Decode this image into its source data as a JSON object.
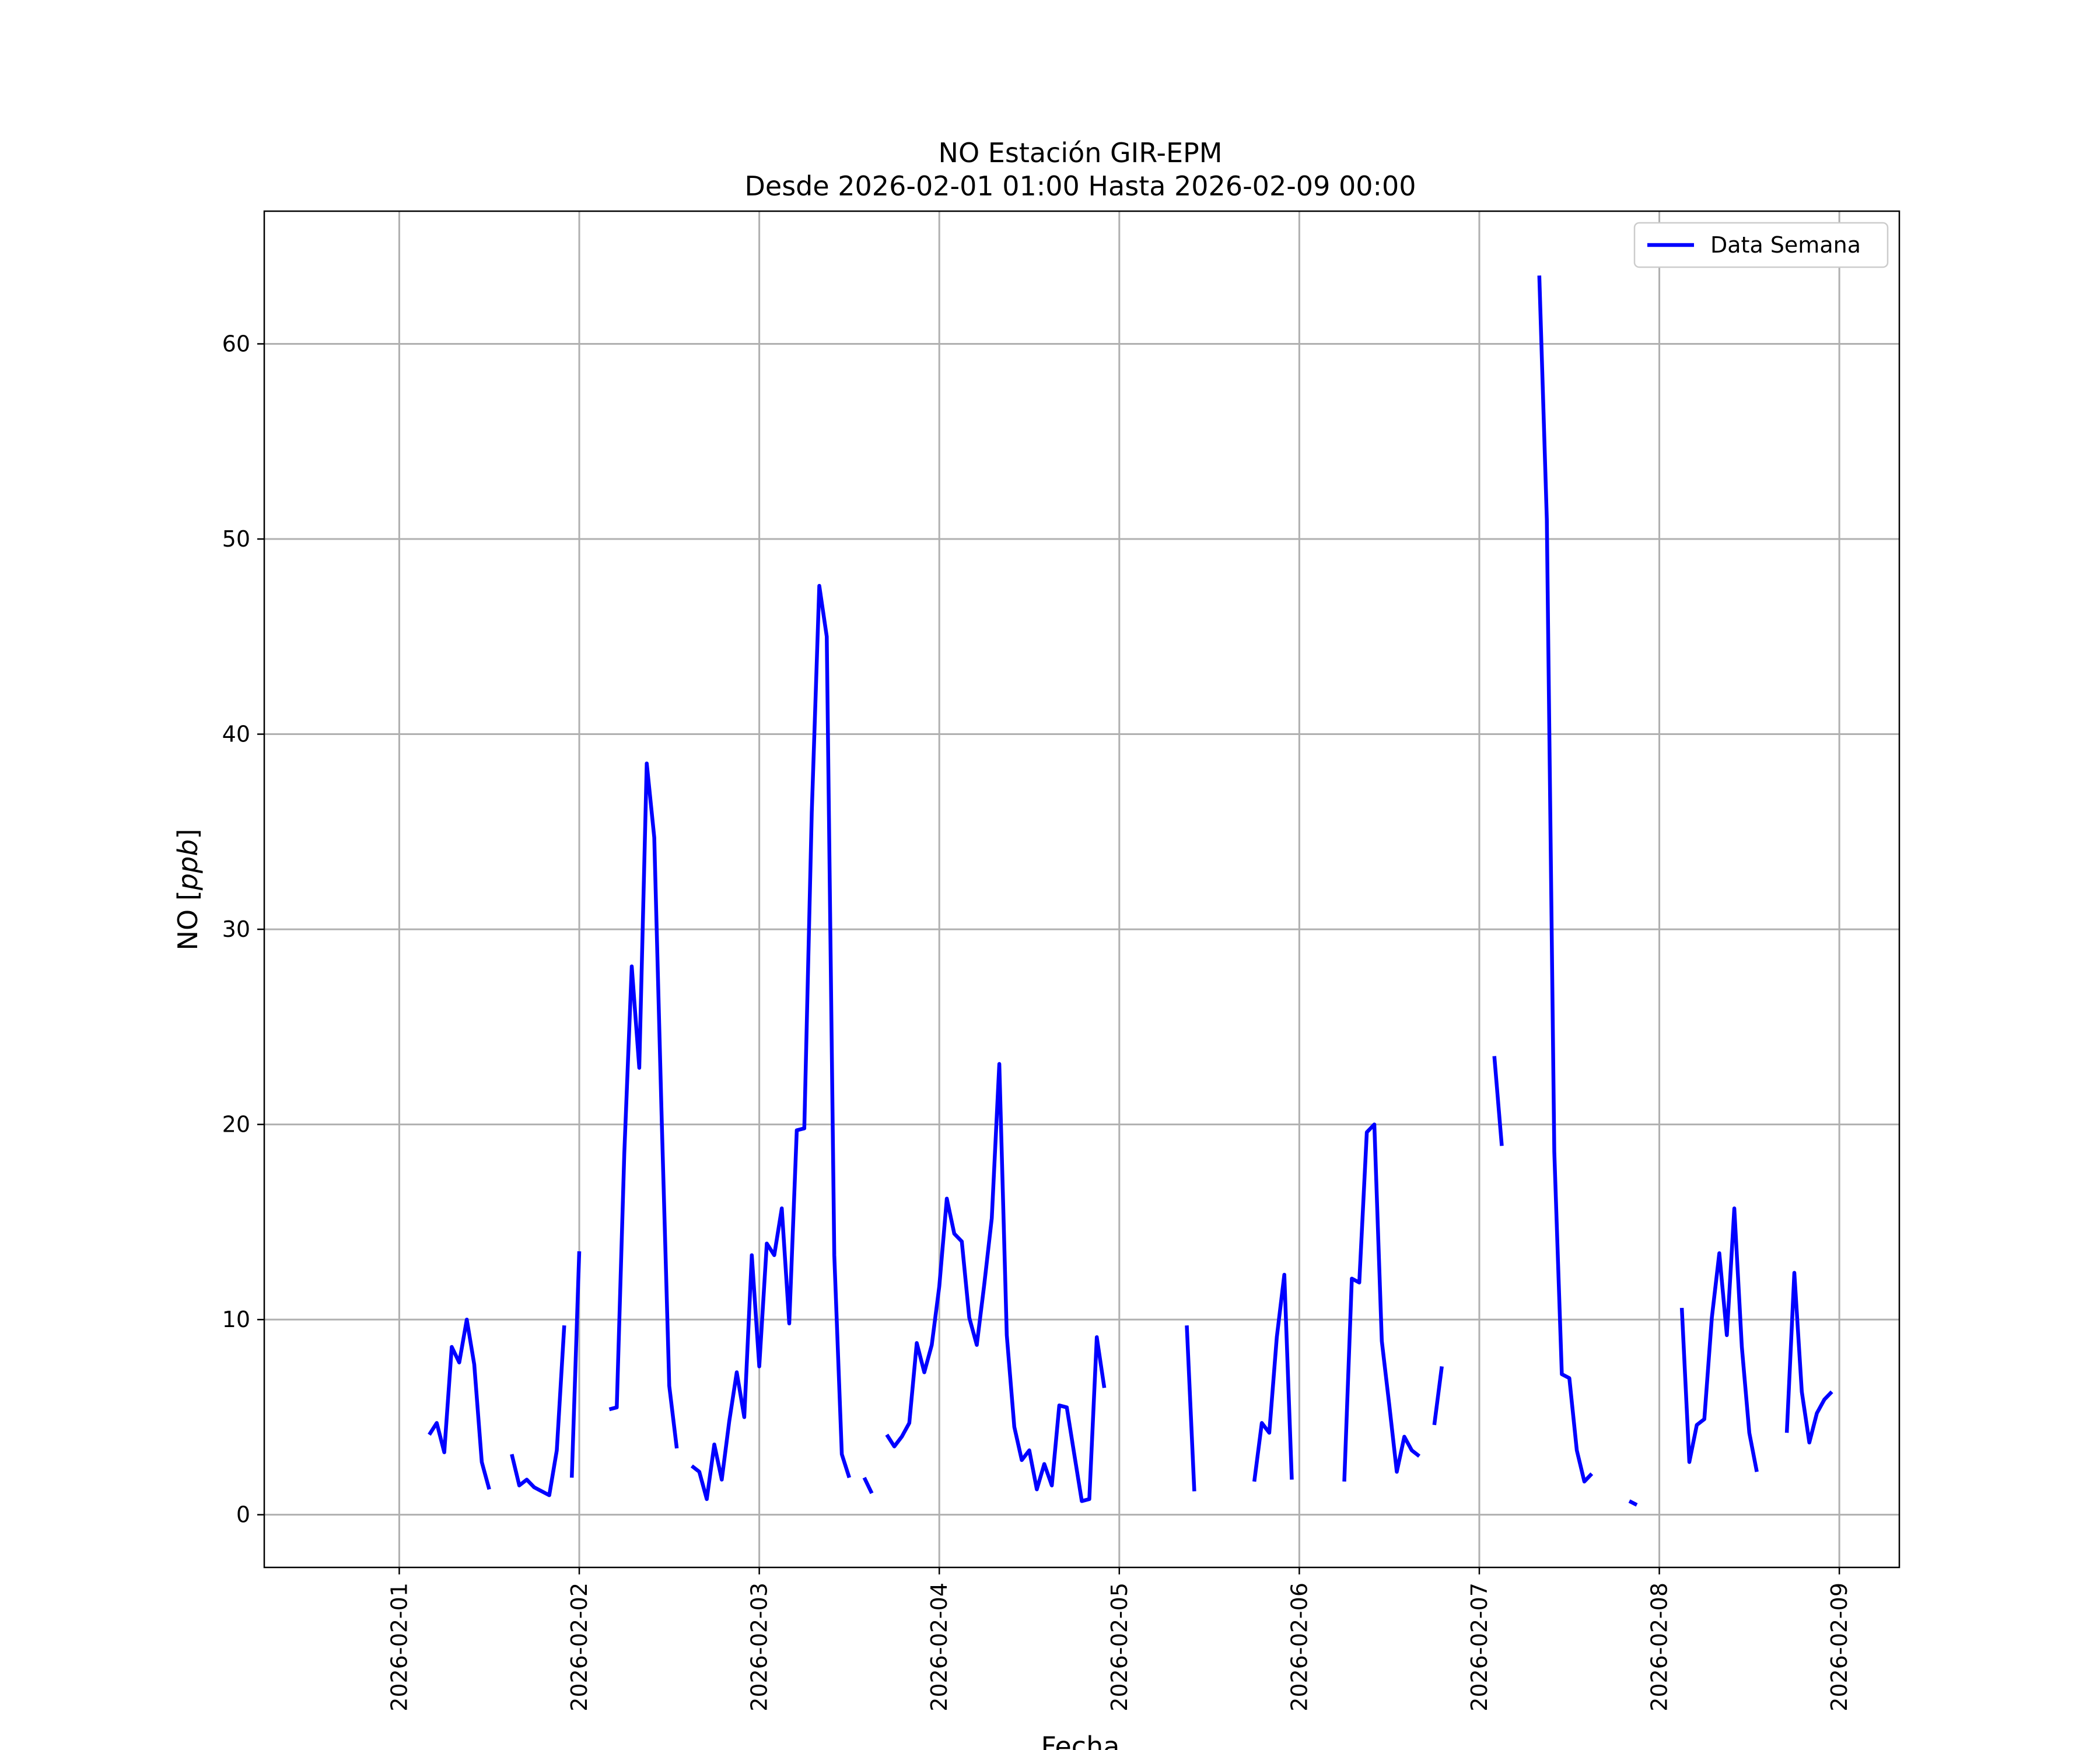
{
  "chart_data": {
    "type": "line",
    "title": "NO Estación GIR-EPM",
    "subtitle": "Desde 2026-02-01 01:00 Hasta 2026-02-09 00:00",
    "xlabel": "Fecha",
    "ylabel_text": "NO [",
    "ylabel_unit": "ppb",
    "ylabel_close": "]",
    "xlim": [
      "2026-01-31T06:00",
      "2026-02-09T08:00"
    ],
    "ylim": [
      -2.7,
      66.8
    ],
    "x_ticks": [
      "2026-02-01",
      "2026-02-02",
      "2026-02-03",
      "2026-02-04",
      "2026-02-05",
      "2026-02-06",
      "2026-02-07",
      "2026-02-08",
      "2026-02-09"
    ],
    "y_ticks": [
      0,
      10,
      20,
      30,
      40,
      50,
      60
    ],
    "y_tick_labels": [
      "0",
      "10",
      "20",
      "30",
      "40",
      "50",
      "60"
    ],
    "grid": true,
    "legend_placement": "top-right",
    "series": [
      {
        "name": "Data Semana",
        "color": "#0000ff",
        "segments": [
          [
            [
              "2026-02-01T04:00",
              4.1
            ],
            [
              "2026-02-01T05:00",
              4.7
            ],
            [
              "2026-02-01T06:00",
              3.2
            ],
            [
              "2026-02-01T07:00",
              8.6
            ],
            [
              "2026-02-01T08:00",
              7.8
            ],
            [
              "2026-02-01T09:00",
              10.0
            ],
            [
              "2026-02-01T10:00",
              7.7
            ],
            [
              "2026-02-01T11:00",
              2.7
            ],
            [
              "2026-02-01T12:00",
              1.3
            ]
          ],
          [
            [
              "2026-02-01T15:00",
              3.1
            ],
            [
              "2026-02-01T16:00",
              1.5
            ],
            [
              "2026-02-01T17:00",
              1.8
            ],
            [
              "2026-02-01T18:00",
              1.4
            ],
            [
              "2026-02-01T19:00",
              1.2
            ],
            [
              "2026-02-01T20:00",
              1.0
            ],
            [
              "2026-02-01T21:00",
              3.3
            ],
            [
              "2026-02-01T22:00",
              9.7
            ]
          ],
          [
            [
              "2026-02-01T23:00",
              1.9
            ],
            [
              "2026-02-02T00:00",
              13.5
            ]
          ],
          [
            [
              "2026-02-02T04:00",
              5.4
            ],
            [
              "2026-02-02T05:00",
              5.5
            ],
            [
              "2026-02-02T06:00",
              18.5
            ],
            [
              "2026-02-02T07:00",
              28.1
            ],
            [
              "2026-02-02T08:00",
              22.9
            ],
            [
              "2026-02-02T09:00",
              38.5
            ],
            [
              "2026-02-02T10:00",
              34.7
            ],
            [
              "2026-02-02T11:00",
              20.1
            ],
            [
              "2026-02-02T12:00",
              6.6
            ],
            [
              "2026-02-02T13:00",
              3.4
            ]
          ],
          [
            [
              "2026-02-02T15:00",
              2.5
            ],
            [
              "2026-02-02T16:00",
              2.2
            ],
            [
              "2026-02-02T17:00",
              0.8
            ],
            [
              "2026-02-02T18:00",
              3.6
            ],
            [
              "2026-02-02T19:00",
              1.8
            ],
            [
              "2026-02-02T20:00",
              4.8
            ],
            [
              "2026-02-02T21:00",
              7.3
            ],
            [
              "2026-02-02T22:00",
              5.0
            ],
            [
              "2026-02-02T23:00",
              13.3
            ],
            [
              "2026-02-03T00:00",
              7.6
            ],
            [
              "2026-02-03T01:00",
              13.9
            ],
            [
              "2026-02-03T02:00",
              13.3
            ],
            [
              "2026-02-03T03:00",
              15.7
            ],
            [
              "2026-02-03T04:00",
              9.8
            ],
            [
              "2026-02-03T05:00",
              19.7
            ],
            [
              "2026-02-03T06:00",
              19.8
            ],
            [
              "2026-02-03T07:00",
              36.0
            ],
            [
              "2026-02-03T08:00",
              47.6
            ],
            [
              "2026-02-03T09:00",
              45.0
            ],
            [
              "2026-02-03T10:00",
              13.3
            ],
            [
              "2026-02-03T11:00",
              3.1
            ],
            [
              "2026-02-03T12:00",
              1.9
            ]
          ],
          [
            [
              "2026-02-03T14:00",
              1.9
            ],
            [
              "2026-02-03T15:00",
              1.1
            ]
          ],
          [
            [
              "2026-02-03T17:00",
              4.1
            ],
            [
              "2026-02-03T18:00",
              3.5
            ],
            [
              "2026-02-03T19:00",
              4.0
            ],
            [
              "2026-02-03T20:00",
              4.7
            ],
            [
              "2026-02-03T21:00",
              8.8
            ],
            [
              "2026-02-03T22:00",
              7.3
            ],
            [
              "2026-02-03T23:00",
              8.7
            ],
            [
              "2026-02-04T00:00",
              11.7
            ],
            [
              "2026-02-04T01:00",
              16.2
            ],
            [
              "2026-02-04T02:00",
              14.4
            ],
            [
              "2026-02-04T03:00",
              14.0
            ],
            [
              "2026-02-04T04:00",
              10.1
            ],
            [
              "2026-02-04T05:00",
              8.7
            ],
            [
              "2026-02-04T06:00",
              11.8
            ],
            [
              "2026-02-04T07:00",
              15.2
            ],
            [
              "2026-02-04T08:00",
              23.1
            ],
            [
              "2026-02-04T09:00",
              9.2
            ],
            [
              "2026-02-04T10:00",
              4.5
            ],
            [
              "2026-02-04T11:00",
              2.8
            ],
            [
              "2026-02-04T12:00",
              3.3
            ],
            [
              "2026-02-04T13:00",
              1.3
            ],
            [
              "2026-02-04T14:00",
              2.6
            ],
            [
              "2026-02-04T15:00",
              1.5
            ],
            [
              "2026-02-04T16:00",
              5.6
            ],
            [
              "2026-02-04T17:00",
              5.5
            ],
            [
              "2026-02-04T18:00",
              3.1
            ],
            [
              "2026-02-04T19:00",
              0.7
            ],
            [
              "2026-02-04T20:00",
              0.8
            ],
            [
              "2026-02-04T21:00",
              9.1
            ],
            [
              "2026-02-04T22:00",
              6.5
            ]
          ],
          [
            [
              "2026-02-05T09:00",
              9.7
            ],
            [
              "2026-02-05T10:00",
              1.2
            ]
          ],
          [
            [
              "2026-02-05T18:00",
              1.7
            ],
            [
              "2026-02-05T19:00",
              4.7
            ],
            [
              "2026-02-05T20:00",
              4.2
            ],
            [
              "2026-02-05T21:00",
              9.1
            ],
            [
              "2026-02-05T22:00",
              12.3
            ],
            [
              "2026-02-05T23:00",
              1.8
            ]
          ],
          [
            [
              "2026-02-06T06:00",
              1.7
            ],
            [
              "2026-02-06T07:00",
              12.1
            ],
            [
              "2026-02-06T08:00",
              11.9
            ],
            [
              "2026-02-06T09:00",
              19.6
            ],
            [
              "2026-02-06T10:00",
              20.0
            ],
            [
              "2026-02-06T11:00",
              8.9
            ],
            [
              "2026-02-06T12:00",
              5.6
            ],
            [
              "2026-02-06T13:00",
              2.2
            ],
            [
              "2026-02-06T14:00",
              4.0
            ],
            [
              "2026-02-06T15:00",
              3.3
            ],
            [
              "2026-02-06T16:00",
              3.0
            ]
          ],
          [
            [
              "2026-02-06T18:00",
              4.6
            ],
            [
              "2026-02-06T19:00",
              7.6
            ]
          ],
          [
            [
              "2026-02-07T02:00",
              23.5
            ],
            [
              "2026-02-07T03:00",
              18.9
            ]
          ],
          [
            [
              "2026-02-07T08:00",
              63.5
            ],
            [
              "2026-02-07T09:00",
              51.0
            ],
            [
              "2026-02-07T10:00",
              18.6
            ],
            [
              "2026-02-07T11:00",
              7.2
            ],
            [
              "2026-02-07T12:00",
              7.0
            ],
            [
              "2026-02-07T13:00",
              3.3
            ],
            [
              "2026-02-07T14:00",
              1.7
            ],
            [
              "2026-02-07T15:00",
              2.1
            ]
          ],
          [
            [
              "2026-02-07T20:00",
              0.7
            ],
            [
              "2026-02-07T21:00",
              0.5
            ]
          ],
          [
            [
              "2026-02-08T03:00",
              10.6
            ],
            [
              "2026-02-08T04:00",
              2.7
            ],
            [
              "2026-02-08T05:00",
              4.6
            ],
            [
              "2026-02-08T06:00",
              4.9
            ],
            [
              "2026-02-08T07:00",
              10.1
            ],
            [
              "2026-02-08T08:00",
              13.4
            ],
            [
              "2026-02-08T09:00",
              9.2
            ],
            [
              "2026-02-08T10:00",
              15.7
            ],
            [
              "2026-02-08T11:00",
              8.6
            ],
            [
              "2026-02-08T12:00",
              4.2
            ],
            [
              "2026-02-08T13:00",
              2.2
            ]
          ],
          [
            [
              "2026-02-08T17:00",
              4.2
            ],
            [
              "2026-02-08T18:00",
              12.4
            ],
            [
              "2026-02-08T19:00",
              6.3
            ],
            [
              "2026-02-08T20:00",
              3.7
            ],
            [
              "2026-02-08T21:00",
              5.2
            ],
            [
              "2026-02-08T22:00",
              5.9
            ],
            [
              "2026-02-08T23:00",
              6.3
            ]
          ]
        ]
      }
    ]
  }
}
